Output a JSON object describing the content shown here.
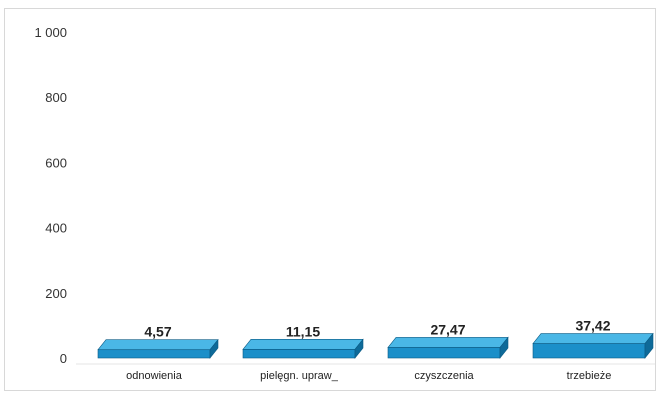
{
  "chart_data": {
    "type": "bar",
    "categories": [
      "odnowienia",
      "pielęgn. upraw_",
      "czyszczenia",
      "trzebieże"
    ],
    "values": [
      4.57,
      11.15,
      27.47,
      37.42
    ],
    "value_labels": [
      "4,57",
      "11,15",
      "27,47",
      "37,42"
    ],
    "ylim": [
      0,
      1000
    ],
    "yticks": [
      0,
      200,
      400,
      600,
      800,
      1000
    ],
    "ytick_labels": [
      "0",
      "200",
      "400",
      "600",
      "800",
      "1 000"
    ],
    "title": "",
    "xlabel": "",
    "ylabel": "",
    "grid": false,
    "legend": "none",
    "bar_style": "3d",
    "colors": {
      "bar_front": "#1b8fc9",
      "bar_top": "#4ab7e6",
      "bar_side": "#0e6a99",
      "bar_edge": "#0a5a84"
    }
  }
}
